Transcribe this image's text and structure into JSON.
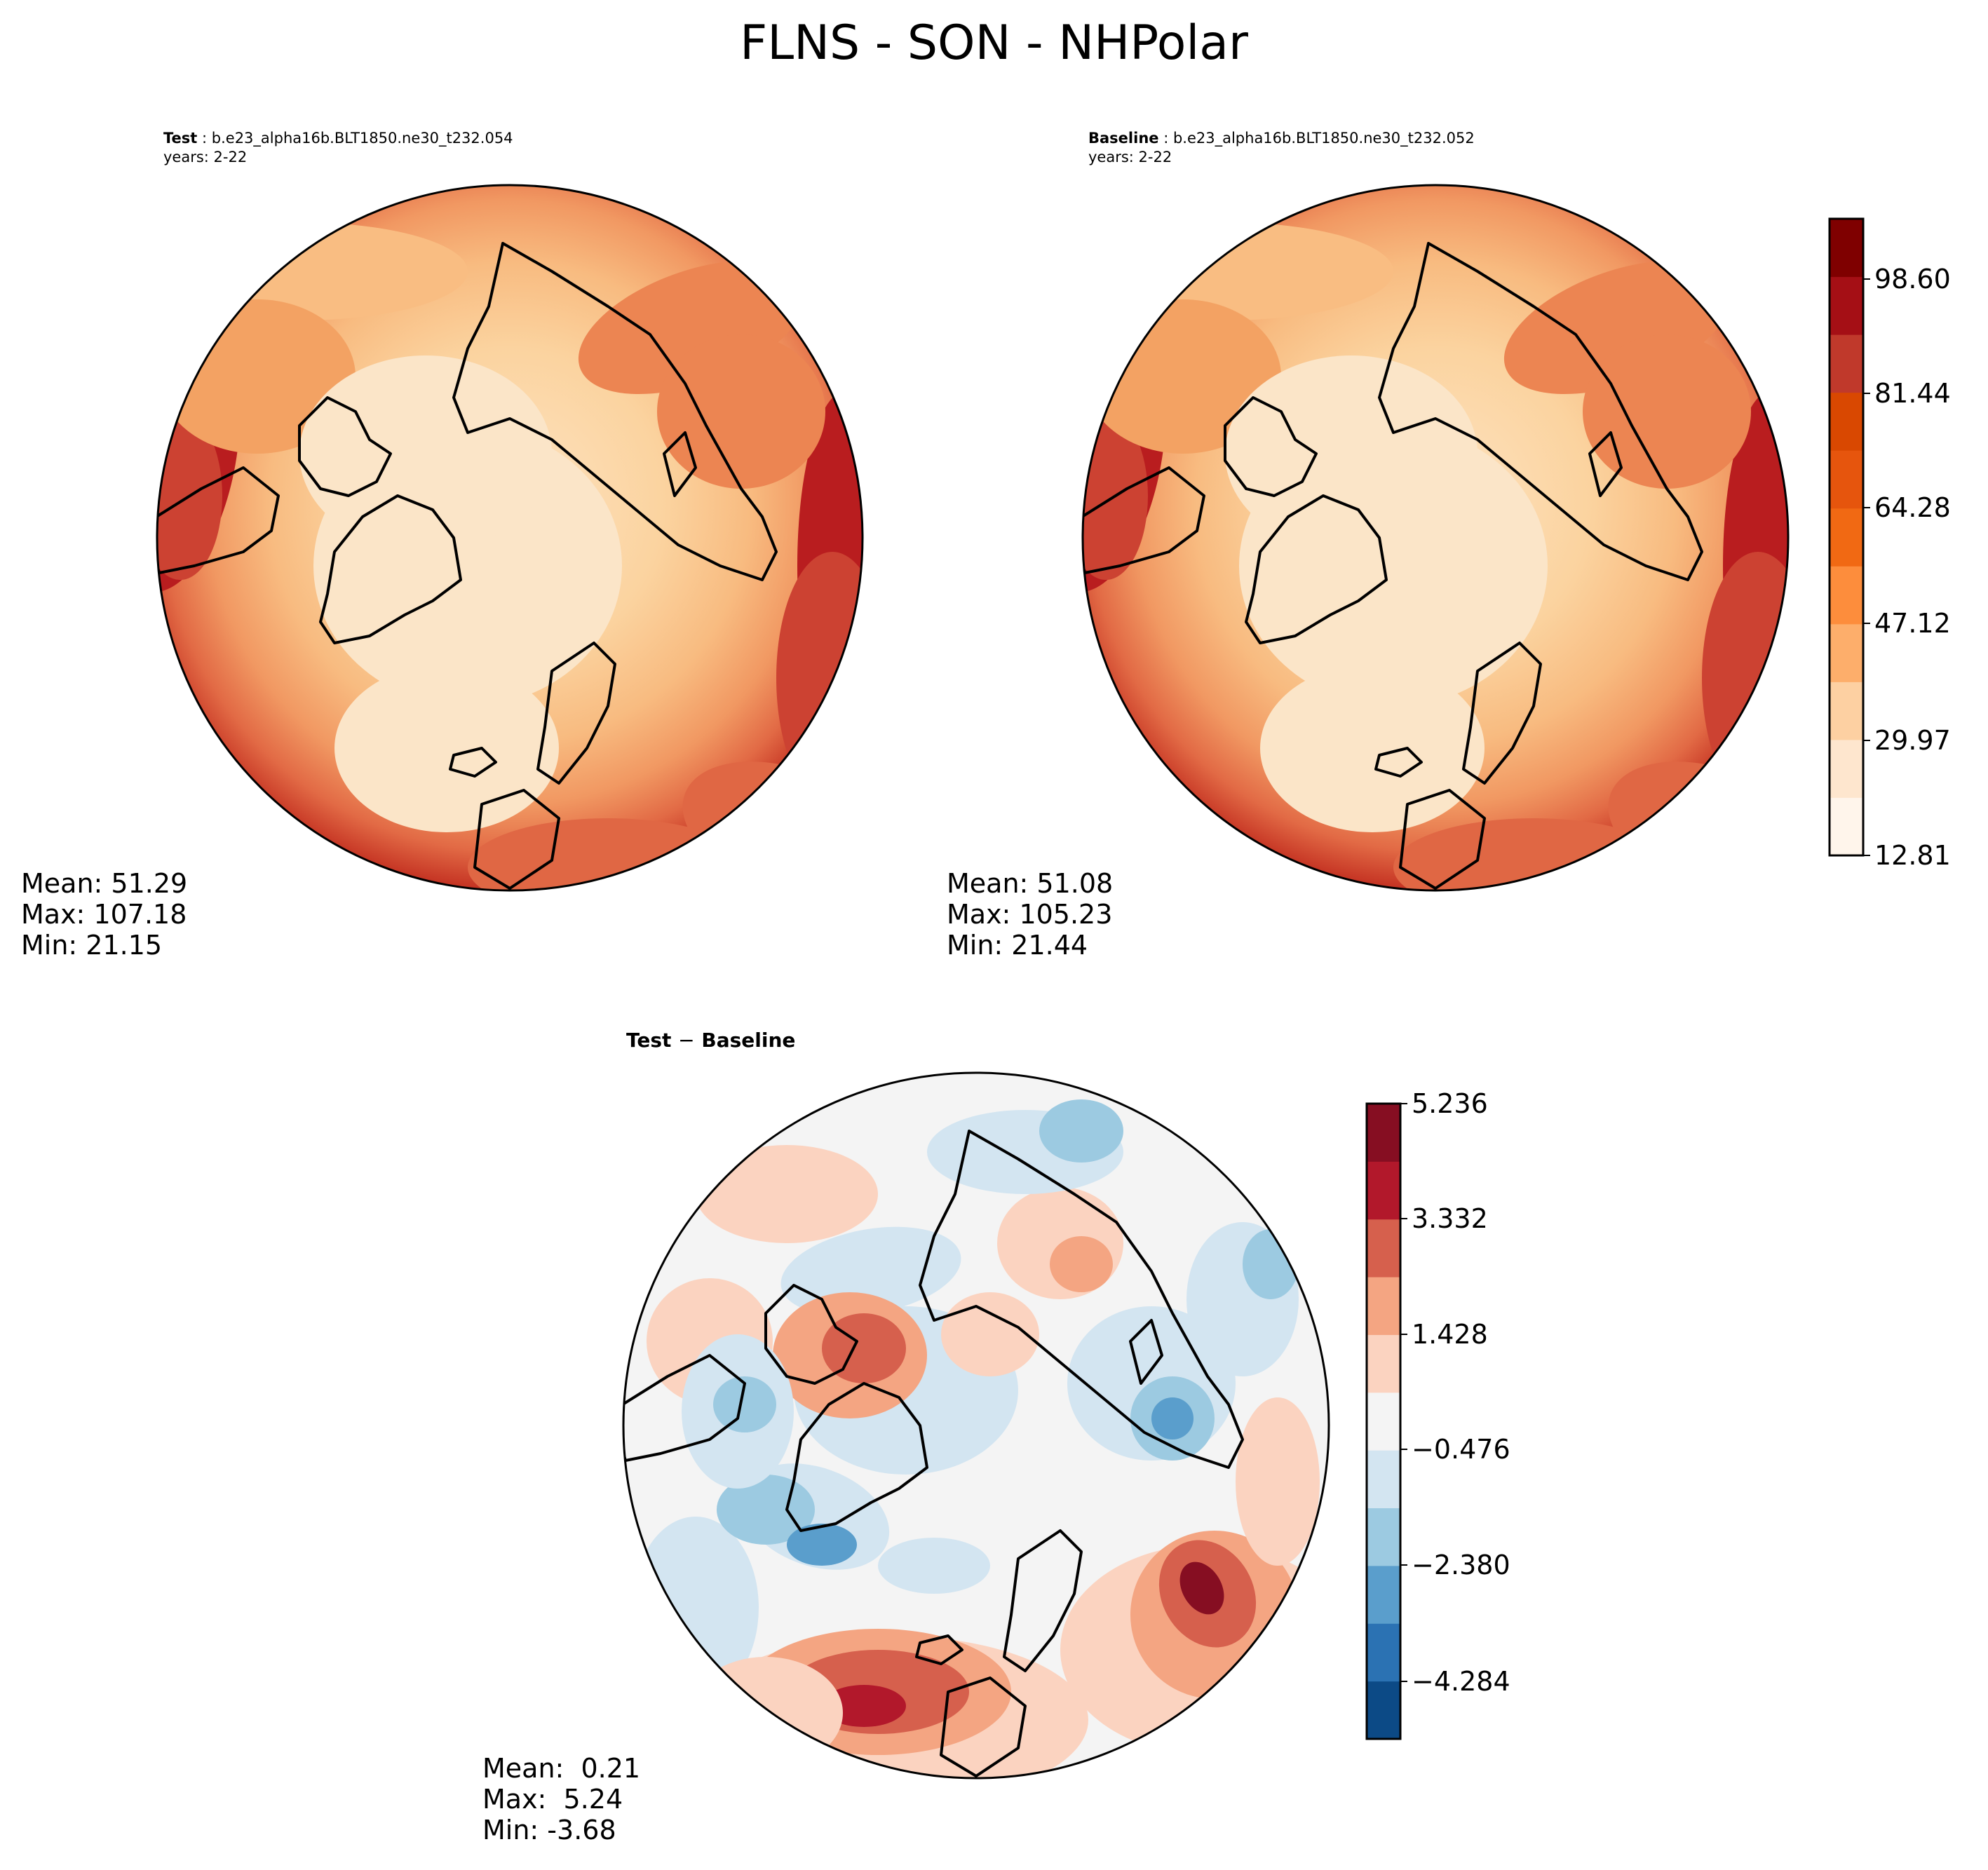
{
  "title": "FLNS - SON - NHPolar",
  "panels": {
    "test": {
      "label": "Test",
      "case": "b.e23_alpha16b.BLT1850.ne30_t232.054",
      "years": "years: 2-22",
      "stats": {
        "mean": "Mean: 51.29",
        "max": "Max: 107.18",
        "min": "Min: 21.15"
      }
    },
    "baseline": {
      "label": "Baseline",
      "case": "b.e23_alpha16b.BLT1850.ne30_t232.052",
      "years": "years: 2-22",
      "stats": {
        "mean": "Mean: 51.08",
        "max": "Max: 105.23",
        "min": "Min: 21.44"
      }
    },
    "diff": {
      "label": "Test",
      "minus": "−",
      "label2": "Baseline",
      "stats": {
        "mean": "Mean:  0.21",
        "max": "Max:  5.24",
        "min": "Min: -3.68"
      }
    }
  },
  "colorbars": {
    "main": {
      "tick_labels": [
        "98.60",
        "81.44",
        "64.28",
        "47.12",
        "29.97",
        "12.81"
      ],
      "colors": [
        "#fff5eb",
        "#fee6ce",
        "#fdd0a2",
        "#fdae6b",
        "#fd8d3c",
        "#f16913",
        "#e6550d",
        "#d94801",
        "#c0392b",
        "#a50f15",
        "#7f0000"
      ]
    },
    "diff": {
      "tick_labels": [
        "5.236",
        "3.332",
        "1.428",
        "−0.476",
        "−2.380",
        "−4.284"
      ],
      "colors": [
        "#0c4a86",
        "#2b72b3",
        "#5a9ecc",
        "#9ccae1",
        "#d3e5f1",
        "#f4f4f4",
        "#fbd3c0",
        "#f4a582",
        "#d6604d",
        "#b2182b",
        "#860e22"
      ]
    }
  },
  "map_colors": {
    "sequential": [
      "#fbe5c8",
      "#fbd3a3",
      "#f9bd82",
      "#f3a263",
      "#ec8552",
      "#e06744",
      "#cc4232",
      "#b91d1f"
    ],
    "land": "#fad9ad",
    "coast": "#000000"
  }
}
